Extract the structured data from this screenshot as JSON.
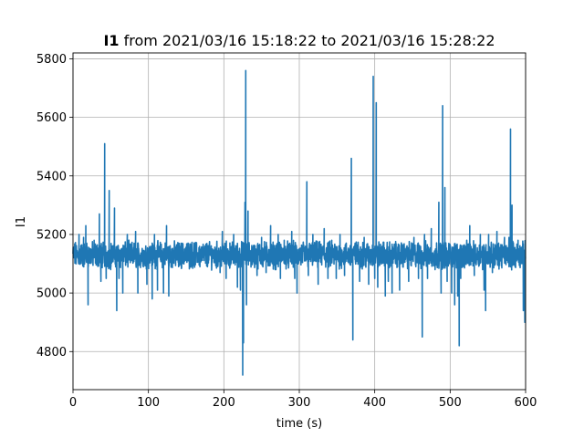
{
  "chart_data": {
    "type": "line",
    "title_bold": "I1",
    "title_rest": " from 2021/03/16 15:18:22 to 2021/03/16 15:28:22",
    "xlabel": "time (s)",
    "ylabel": "I1",
    "xlim": [
      0,
      600
    ],
    "ylim": [
      4670,
      5820
    ],
    "xticks": [
      0,
      100,
      200,
      300,
      400,
      500,
      600
    ],
    "yticks": [
      4800,
      5000,
      5200,
      5400,
      5600,
      5800
    ],
    "grid": true,
    "line_color": "#1f77b4",
    "baseline": 5130,
    "noise": 35,
    "spikes": [
      {
        "x": 8,
        "y": 5200
      },
      {
        "x": 14,
        "y": 5190
      },
      {
        "x": 17,
        "y": 5230
      },
      {
        "x": 20,
        "y": 4960
      },
      {
        "x": 28,
        "y": 5180
      },
      {
        "x": 35,
        "y": 5270
      },
      {
        "x": 37,
        "y": 5040
      },
      {
        "x": 42,
        "y": 5510
      },
      {
        "x": 44,
        "y": 5050
      },
      {
        "x": 48,
        "y": 5350
      },
      {
        "x": 50,
        "y": 5080
      },
      {
        "x": 55,
        "y": 5290
      },
      {
        "x": 58,
        "y": 4940
      },
      {
        "x": 61,
        "y": 5050
      },
      {
        "x": 66,
        "y": 5000
      },
      {
        "x": 72,
        "y": 5200
      },
      {
        "x": 83,
        "y": 5210
      },
      {
        "x": 86,
        "y": 5000
      },
      {
        "x": 98,
        "y": 5030
      },
      {
        "x": 105,
        "y": 4980
      },
      {
        "x": 108,
        "y": 5200
      },
      {
        "x": 112,
        "y": 5010
      },
      {
        "x": 114,
        "y": 5150
      },
      {
        "x": 120,
        "y": 5000
      },
      {
        "x": 124,
        "y": 5230
      },
      {
        "x": 127,
        "y": 4990
      },
      {
        "x": 131,
        "y": 5150
      },
      {
        "x": 140,
        "y": 5090
      },
      {
        "x": 148,
        "y": 5150
      },
      {
        "x": 160,
        "y": 5140
      },
      {
        "x": 175,
        "y": 5160
      },
      {
        "x": 180,
        "y": 5150
      },
      {
        "x": 195,
        "y": 5070
      },
      {
        "x": 198,
        "y": 5210
      },
      {
        "x": 203,
        "y": 5050
      },
      {
        "x": 208,
        "y": 5090
      },
      {
        "x": 213,
        "y": 5200
      },
      {
        "x": 218,
        "y": 5020
      },
      {
        "x": 222,
        "y": 5010
      },
      {
        "x": 225,
        "y": 4720
      },
      {
        "x": 226,
        "y": 4830
      },
      {
        "x": 228,
        "y": 5310
      },
      {
        "x": 229,
        "y": 5760
      },
      {
        "x": 230,
        "y": 4960
      },
      {
        "x": 232,
        "y": 5280
      },
      {
        "x": 240,
        "y": 5160
      },
      {
        "x": 244,
        "y": 5060
      },
      {
        "x": 250,
        "y": 5190
      },
      {
        "x": 256,
        "y": 5070
      },
      {
        "x": 262,
        "y": 5230
      },
      {
        "x": 268,
        "y": 5080
      },
      {
        "x": 272,
        "y": 5200
      },
      {
        "x": 275,
        "y": 5050
      },
      {
        "x": 280,
        "y": 5180
      },
      {
        "x": 286,
        "y": 5100
      },
      {
        "x": 290,
        "y": 5210
      },
      {
        "x": 294,
        "y": 5050
      },
      {
        "x": 297,
        "y": 5000
      },
      {
        "x": 303,
        "y": 5160
      },
      {
        "x": 310,
        "y": 5380
      },
      {
        "x": 312,
        "y": 5060
      },
      {
        "x": 318,
        "y": 5200
      },
      {
        "x": 325,
        "y": 5030
      },
      {
        "x": 333,
        "y": 5220
      },
      {
        "x": 338,
        "y": 5050
      },
      {
        "x": 343,
        "y": 5180
      },
      {
        "x": 349,
        "y": 5050
      },
      {
        "x": 354,
        "y": 5200
      },
      {
        "x": 360,
        "y": 5060
      },
      {
        "x": 366,
        "y": 5130
      },
      {
        "x": 369,
        "y": 5460
      },
      {
        "x": 371,
        "y": 4840
      },
      {
        "x": 374,
        "y": 5170
      },
      {
        "x": 380,
        "y": 5040
      },
      {
        "x": 386,
        "y": 5190
      },
      {
        "x": 392,
        "y": 5030
      },
      {
        "x": 398,
        "y": 5740
      },
      {
        "x": 400,
        "y": 5050
      },
      {
        "x": 402,
        "y": 5650
      },
      {
        "x": 404,
        "y": 5020
      },
      {
        "x": 410,
        "y": 5160
      },
      {
        "x": 414,
        "y": 4990
      },
      {
        "x": 418,
        "y": 5040
      },
      {
        "x": 423,
        "y": 5000
      },
      {
        "x": 428,
        "y": 5100
      },
      {
        "x": 433,
        "y": 5010
      },
      {
        "x": 440,
        "y": 5150
      },
      {
        "x": 445,
        "y": 5040
      },
      {
        "x": 452,
        "y": 5190
      },
      {
        "x": 458,
        "y": 5050
      },
      {
        "x": 463,
        "y": 4850
      },
      {
        "x": 466,
        "y": 5200
      },
      {
        "x": 470,
        "y": 5050
      },
      {
        "x": 475,
        "y": 5220
      },
      {
        "x": 480,
        "y": 5080
      },
      {
        "x": 485,
        "y": 5310
      },
      {
        "x": 488,
        "y": 5000
      },
      {
        "x": 490,
        "y": 5640
      },
      {
        "x": 493,
        "y": 5360
      },
      {
        "x": 496,
        "y": 5040
      },
      {
        "x": 502,
        "y": 5000
      },
      {
        "x": 506,
        "y": 4960
      },
      {
        "x": 510,
        "y": 4990
      },
      {
        "x": 512,
        "y": 4820
      },
      {
        "x": 514,
        "y": 5050
      },
      {
        "x": 520,
        "y": 5100
      },
      {
        "x": 526,
        "y": 5230
      },
      {
        "x": 532,
        "y": 5060
      },
      {
        "x": 540,
        "y": 5200
      },
      {
        "x": 545,
        "y": 5010
      },
      {
        "x": 547,
        "y": 4940
      },
      {
        "x": 551,
        "y": 5200
      },
      {
        "x": 556,
        "y": 5070
      },
      {
        "x": 562,
        "y": 5210
      },
      {
        "x": 567,
        "y": 5110
      },
      {
        "x": 572,
        "y": 5190
      },
      {
        "x": 578,
        "y": 5190
      },
      {
        "x": 580,
        "y": 5560
      },
      {
        "x": 582,
        "y": 5300
      },
      {
        "x": 586,
        "y": 5090
      },
      {
        "x": 590,
        "y": 5180
      },
      {
        "x": 594,
        "y": 5120
      },
      {
        "x": 597,
        "y": 4940
      },
      {
        "x": 599,
        "y": 4900
      }
    ]
  }
}
